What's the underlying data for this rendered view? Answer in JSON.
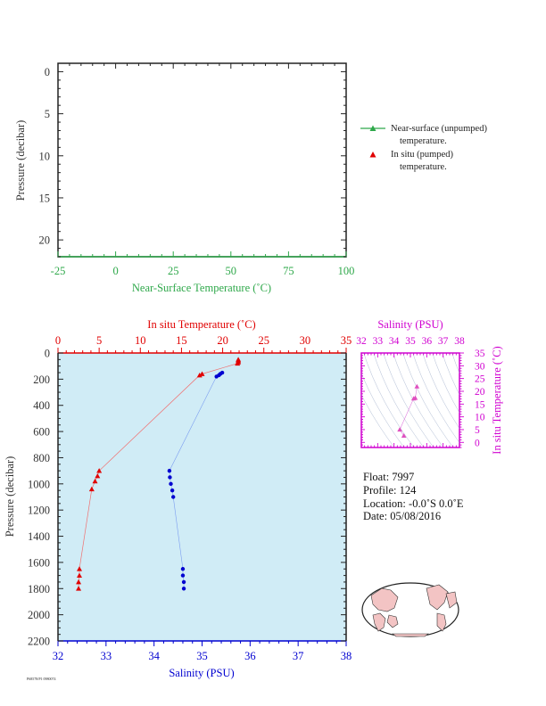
{
  "colors": {
    "green": "#2ea84a",
    "red": "#e00000",
    "blue": "#0000d0",
    "magenta": "#d000d0",
    "dark": "#333333",
    "plot_bg": "#d0ecf6",
    "axis_dark": "#222222"
  },
  "top_panel": {
    "xlabel": "Near-Surface Temperature (˚C)",
    "ylabel": "Pressure (decibar)",
    "legend": [
      {
        "line1": "Near-surface (unpumped)",
        "line2": "temperature.",
        "marker": "green-line-triangle"
      },
      {
        "line1": "In situ (pumped)",
        "line2": "temperature.",
        "marker": "red-triangle"
      }
    ]
  },
  "info": {
    "float": "Float:  7997",
    "profile": "Profile:  124",
    "location": "Location:  -0.0˚S   0.0˚E",
    "date": "Date:  05/08/2016"
  },
  "footer_code": "P68578/P1 0980074",
  "chart_data": [
    {
      "type": "scatter",
      "id": "near_surface_temperature",
      "xlabel": "Near-Surface Temperature (˚C)",
      "ylabel": "Pressure (decibar)",
      "xlim": [
        -25,
        100
      ],
      "ylim": [
        22,
        -1
      ],
      "xticks": [
        -25,
        0,
        25,
        50,
        75,
        100
      ],
      "yticks": [
        0,
        5,
        10,
        15,
        20
      ],
      "series": [
        {
          "name": "Near-surface (unpumped) temperature.",
          "points": []
        },
        {
          "name": "In situ (pumped) temperature.",
          "points": []
        }
      ]
    },
    {
      "type": "line",
      "id": "main_profile",
      "ylabel": "Pressure (decibar)",
      "ylim": [
        2200,
        0
      ],
      "yticks": [
        0,
        200,
        400,
        600,
        800,
        1000,
        1200,
        1400,
        1600,
        1800,
        2000,
        2200
      ],
      "top_axis": {
        "label": "In situ Temperature (˚C)",
        "lim": [
          0,
          35
        ],
        "ticks": [
          0,
          5,
          10,
          15,
          20,
          25,
          30,
          35
        ]
      },
      "bottom_axis": {
        "label": "Salinity (PSU)",
        "lim": [
          32,
          38
        ],
        "ticks": [
          32,
          33,
          34,
          35,
          36,
          37,
          38
        ]
      },
      "series": [
        {
          "name": "In situ Temperature (˚C)",
          "axis": "top",
          "points": [
            [
              21.9,
              50
            ],
            [
              21.9,
              60
            ],
            [
              21.9,
              70
            ],
            [
              21.8,
              80
            ],
            [
              17.5,
              160
            ],
            [
              17.2,
              170
            ],
            [
              5.0,
              900
            ],
            [
              4.8,
              940
            ],
            [
              4.5,
              980
            ],
            [
              4.1,
              1040
            ],
            [
              2.6,
              1650
            ],
            [
              2.6,
              1700
            ],
            [
              2.5,
              1750
            ],
            [
              2.5,
              1800
            ]
          ]
        },
        {
          "name": "Salinity (PSU)",
          "axis": "bottom",
          "points": [
            [
              35.42,
              150
            ],
            [
              35.38,
              160
            ],
            [
              35.35,
              170
            ],
            [
              35.3,
              180
            ],
            [
              34.32,
              900
            ],
            [
              34.33,
              950
            ],
            [
              34.35,
              1000
            ],
            [
              34.38,
              1050
            ],
            [
              34.4,
              1100
            ],
            [
              34.6,
              1650
            ],
            [
              34.6,
              1700
            ],
            [
              34.62,
              1750
            ],
            [
              34.62,
              1800
            ]
          ]
        }
      ]
    },
    {
      "type": "scatter",
      "id": "ts_diagram",
      "xlabel": "Salinity (PSU)",
      "ylabel": "In situ Temperature (˚C)",
      "xlim": [
        32,
        38
      ],
      "ylim": [
        -2,
        35
      ],
      "xticks": [
        32,
        33,
        34,
        35,
        36,
        37,
        38
      ],
      "yticks": [
        0,
        5,
        10,
        15,
        20,
        25,
        30,
        35
      ],
      "points": [
        [
          35.4,
          21.9
        ],
        [
          35.3,
          17.4
        ],
        [
          35.2,
          17.2
        ],
        [
          34.35,
          5.0
        ],
        [
          34.6,
          2.6
        ]
      ]
    }
  ]
}
